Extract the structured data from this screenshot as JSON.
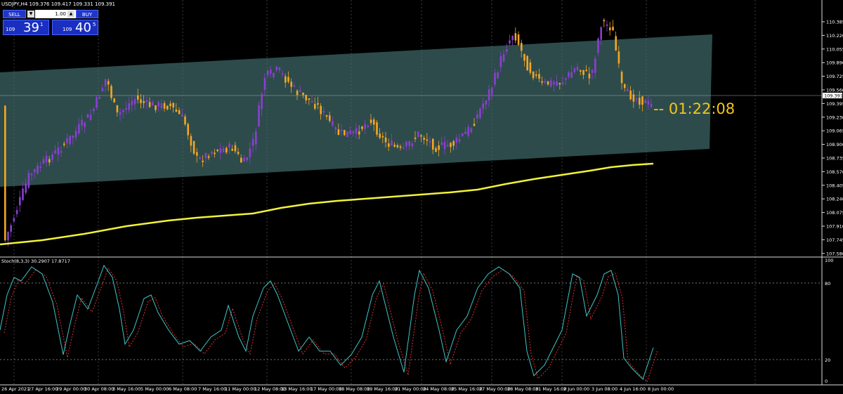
{
  "header": {
    "title": "USDJPY,H4  109.376 109.417 109.331 109.391"
  },
  "trade": {
    "sell_label": "SELL",
    "buy_label": "BUY",
    "lot": "1.00",
    "sell_small": "109",
    "sell_big": "39",
    "sell_sup": "1",
    "buy_small": "109",
    "buy_big": "40",
    "buy_sup": "5"
  },
  "timer": "--  01:22:08",
  "price_axis": [
    "110.385",
    "110.220",
    "110.055",
    "109.890",
    "109.725",
    "109.560",
    "109.395",
    "109.230",
    "109.065",
    "108.900",
    "108.735",
    "108.570",
    "108.405",
    "108.240",
    "108.075",
    "107.910",
    "107.745",
    "107.580"
  ],
  "current_price": "109.391",
  "indicator": {
    "title": "Stoch(8,3,3) 30.2907 17.8717",
    "axis": [
      "100",
      "80",
      "20",
      "0"
    ]
  },
  "time_axis": [
    "26 Apr 2021",
    "27 Apr 16:00",
    "29 Apr 00:00",
    "30 Apr 08:00",
    "3 May 16:00",
    "5 May 00:00",
    "6 May 08:00",
    "7 May 16:00",
    "11 May 00:00",
    "12 May 08:00",
    "13 May 16:00",
    "17 May 00:00",
    "18 May 08:00",
    "19 May 16:00",
    "21 May 00:00",
    "24 May 08:00",
    "25 May 16:00",
    "27 May 00:00",
    "28 May 08:00",
    "31 May 16:00",
    "2 Jun 00:00",
    "3 Jun 08:00",
    "4 Jun 16:00",
    "8 Jun 00:00"
  ],
  "colors": {
    "bull": "#8a3fd1",
    "bear": "#f5a623",
    "ma": "#f2f23a",
    "channel": "#2f4f4f",
    "stoch_main": "#3fc6c6",
    "stoch_signal": "#e03030",
    "timer": "#f5c518"
  },
  "chart_data": {
    "type": "candlestick",
    "symbol": "USDJPY",
    "timeframe": "H4",
    "ylim": [
      107.58,
      110.385
    ],
    "last_close": 109.391
  }
}
